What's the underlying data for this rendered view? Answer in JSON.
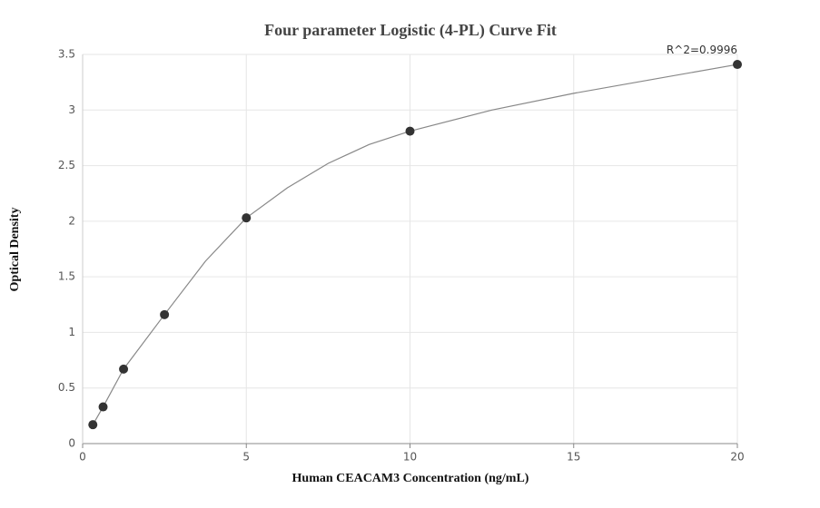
{
  "chart_data": {
    "type": "scatter",
    "title": "Four parameter Logistic (4-PL) Curve Fit",
    "x_label": "Human CEACAM3 Concentration (ng/mL)",
    "y_label": "Optical Density",
    "annotation": "R^2=0.9996",
    "series": [
      {
        "type": "scatter",
        "color": "#333333",
        "x": [
          0.3125,
          0.625,
          1.25,
          2.5,
          5,
          10,
          20
        ],
        "values": [
          0.17,
          0.33,
          0.67,
          1.16,
          2.03,
          2.81,
          3.41
        ]
      },
      {
        "type": "line",
        "color": "#888888",
        "x": [
          0.3125,
          0.625,
          1.25,
          2.5,
          3.75,
          5,
          6.25,
          7.5,
          8.75,
          10,
          12.5,
          15,
          17.5,
          20
        ],
        "values": [
          0.17,
          0.33,
          0.67,
          1.16,
          1.64,
          2.03,
          2.3,
          2.52,
          2.69,
          2.81,
          3.0,
          3.15,
          3.28,
          3.41
        ]
      }
    ],
    "xlim": [
      0,
      20
    ],
    "xticks": [
      0,
      5,
      10,
      15,
      20
    ],
    "ylim": [
      0,
      3.5
    ],
    "yticks": [
      0,
      0.5,
      1,
      1.5,
      2,
      2.5,
      3,
      3.5
    ],
    "grid": true
  }
}
